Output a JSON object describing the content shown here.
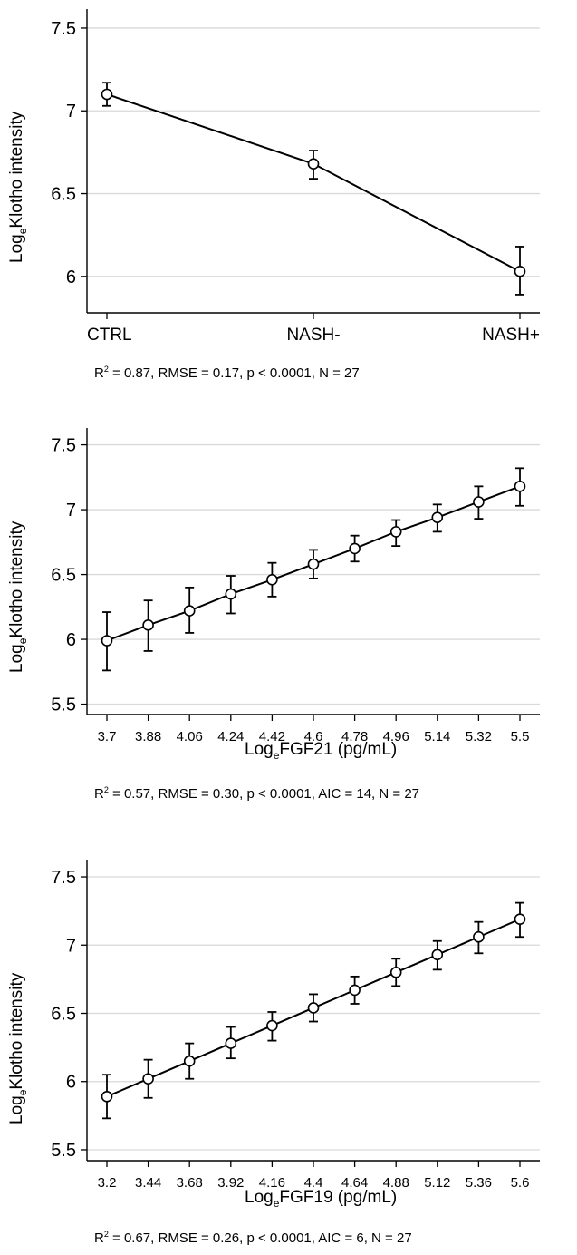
{
  "chart_data": [
    {
      "type": "line",
      "ylabel": {
        "log": "Log",
        "sub": "e",
        "rest": "Klotho intensity"
      },
      "xlabel": null,
      "categories": [
        "CTRL",
        "NASH-",
        "NASH+"
      ],
      "values": [
        7.1,
        6.68,
        6.03
      ],
      "err_low": [
        7.03,
        6.59,
        5.89
      ],
      "err_high": [
        7.17,
        6.76,
        6.18
      ],
      "ylim": [
        5.78,
        7.56
      ],
      "yticks": [
        "6",
        "6.5",
        "7",
        "7.5"
      ],
      "grid": true,
      "stats": {
        "r2_label": "R",
        "r2_sup": "2",
        "text": " = 0.87, RMSE = 0.17, p < 0.0001, N = 27"
      }
    },
    {
      "type": "line",
      "ylabel": {
        "log": "Log",
        "sub": "e",
        "rest": "Klotho intensity"
      },
      "xlabel": {
        "log": "Log",
        "sub": "e",
        "rest": "FGF21 (pg/mL)"
      },
      "x": [
        "3.7",
        "3.88",
        "4.06",
        "4.24",
        "4.42",
        "4.6",
        "4.78",
        "4.96",
        "5.14",
        "5.32",
        "5.5"
      ],
      "values": [
        5.99,
        6.11,
        6.22,
        6.35,
        6.46,
        6.58,
        6.7,
        6.83,
        6.94,
        7.06,
        7.18
      ],
      "err_low": [
        5.76,
        5.91,
        6.05,
        6.2,
        6.33,
        6.47,
        6.6,
        6.72,
        6.83,
        6.93,
        7.03
      ],
      "err_high": [
        6.21,
        6.3,
        6.4,
        6.49,
        6.59,
        6.69,
        6.8,
        6.92,
        7.04,
        7.18,
        7.32
      ],
      "ylim": [
        5.42,
        7.56
      ],
      "yticks": [
        "5.5",
        "6",
        "6.5",
        "7",
        "7.5"
      ],
      "grid": true,
      "stats": {
        "r2_label": "R",
        "r2_sup": "2",
        "text": " = 0.57, RMSE = 0.30, p < 0.0001, AIC = 14, N = 27"
      }
    },
    {
      "type": "line",
      "ylabel": {
        "log": "Log",
        "sub": "e",
        "rest": "Klotho intensity"
      },
      "xlabel": {
        "log": "Log",
        "sub": "e",
        "rest": "FGF19 (pg/mL)"
      },
      "x": [
        "3.2",
        "3.44",
        "3.68",
        "3.92",
        "4.16",
        "4.4",
        "4.64",
        "4.88",
        "5.12",
        "5.36",
        "5.6"
      ],
      "values": [
        5.89,
        6.02,
        6.15,
        6.28,
        6.41,
        6.54,
        6.67,
        6.8,
        6.93,
        7.06,
        7.19
      ],
      "err_low": [
        5.73,
        5.88,
        6.02,
        6.17,
        6.3,
        6.44,
        6.57,
        6.7,
        6.82,
        6.94,
        7.06
      ],
      "err_high": [
        6.05,
        6.16,
        6.28,
        6.4,
        6.51,
        6.64,
        6.77,
        6.9,
        7.03,
        7.17,
        7.31
      ],
      "ylim": [
        5.42,
        7.56
      ],
      "yticks": [
        "5.5",
        "6",
        "6.5",
        "7",
        "7.5"
      ],
      "grid": true,
      "stats": {
        "r2_label": "R",
        "r2_sup": "2",
        "text": " = 0.67, RMSE = 0.26, p < 0.0001, AIC = 6, N = 27"
      }
    }
  ]
}
